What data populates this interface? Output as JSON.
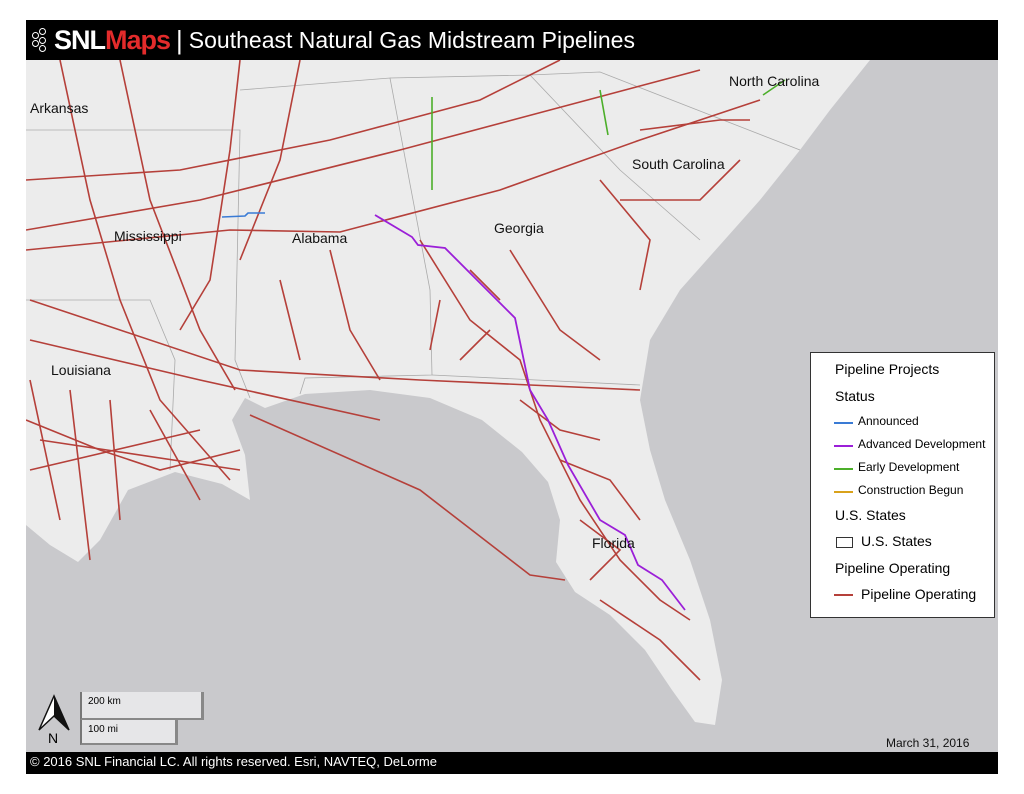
{
  "header": {
    "brand_snl": "SNL",
    "brand_maps": "Maps",
    "separator": "|",
    "title": "Southeast Natural Gas Midstream Pipelines"
  },
  "map": {
    "state_labels": [
      "Arkansas",
      "Mississippi",
      "Alabama",
      "Georgia",
      "South Carolina",
      "North Carolina",
      "Louisiana",
      "Florida"
    ],
    "date": "March 31, 2016",
    "colors": {
      "land": "#ececec",
      "water": "#c9c9cc",
      "operating": "#b5403a",
      "announced": "#3a7bd5",
      "advanced": "#9b1fd8",
      "early": "#4caf2a",
      "construction": "#d9a21b"
    }
  },
  "legend": {
    "title": "Pipeline Projects",
    "status_heading": "Status",
    "statuses": [
      {
        "label": "Announced",
        "color": "#3a7bd5"
      },
      {
        "label": "Advanced Development",
        "color": "#9b1fd8"
      },
      {
        "label": "Early Development",
        "color": "#4caf2a"
      },
      {
        "label": "Construction Begun",
        "color": "#d9a21b"
      }
    ],
    "states_heading": "U.S. States",
    "states_item": "U.S. States",
    "operating_heading": "Pipeline Operating",
    "operating_item": "Pipeline Operating"
  },
  "scale": {
    "km": "200 km",
    "mi": "100 mi",
    "north": "N"
  },
  "footer": {
    "copyright": "© 2016 SNL Financial LC. All rights reserved. Esri, NAVTEQ, DeLorme"
  }
}
